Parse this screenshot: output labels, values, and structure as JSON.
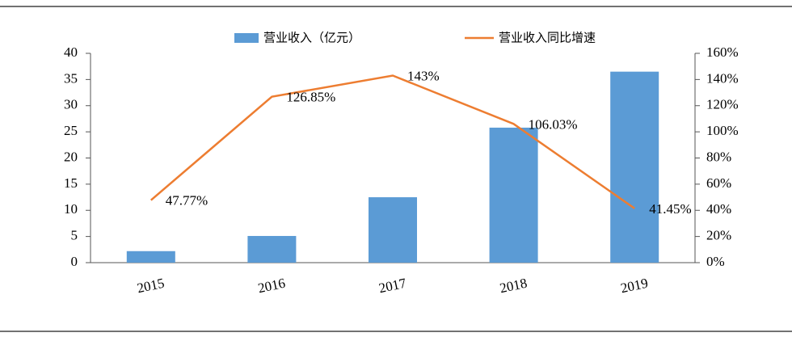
{
  "chart_data": {
    "type": "bar",
    "categories": [
      "2015",
      "2016",
      "2017",
      "2018",
      "2019"
    ],
    "series": [
      {
        "name": "营业收入（亿元）",
        "type": "bar",
        "color": "#5b9bd5",
        "values": [
          2.2,
          5.1,
          12.5,
          25.8,
          36.5
        ]
      },
      {
        "name": "营业收入同比增速",
        "type": "line",
        "axis": "y2",
        "color": "#ed7d31",
        "values": [
          47.77,
          126.85,
          143,
          106.03,
          41.45
        ],
        "value_labels": [
          "47.77%",
          "126.85%",
          "143%",
          "106.03%",
          "41.45%"
        ]
      }
    ],
    "ylim": [
      0,
      40
    ],
    "yticks": [
      0,
      5,
      10,
      15,
      20,
      25,
      30,
      35,
      40
    ],
    "y2lim": [
      0,
      160
    ],
    "y2ticks": [
      {
        "value": 0,
        "label": "0%"
      },
      {
        "value": 20,
        "label": "20%"
      },
      {
        "value": 40,
        "label": "40%"
      },
      {
        "value": 60,
        "label": "60%"
      },
      {
        "value": 80,
        "label": "80%"
      },
      {
        "value": 100,
        "label": "100%"
      },
      {
        "value": 120,
        "label": "120%"
      },
      {
        "value": 140,
        "label": "140%"
      },
      {
        "value": 160,
        "label": "160%"
      }
    ],
    "grid": false,
    "legend": "top"
  }
}
